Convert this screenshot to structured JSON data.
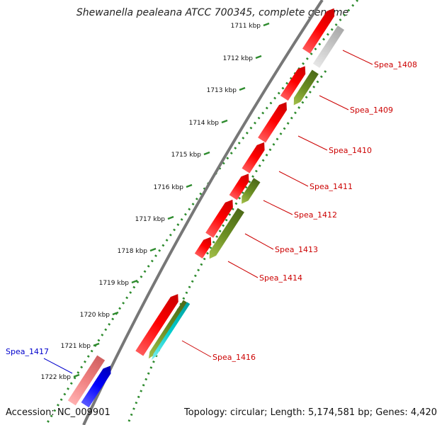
{
  "title": "Shewanella pealeana ATCC 700345, complete genome",
  "footer": {
    "accession": "Accession: NC_009901",
    "topology": "Topology: circular; Length: 5,174,581 bp; Genes: 4,420"
  },
  "ticks": [
    {
      "label": "1711 kbp"
    },
    {
      "label": "1712 kbp"
    },
    {
      "label": "1713 kbp"
    },
    {
      "label": "1714 kbp"
    },
    {
      "label": "1715 kbp"
    },
    {
      "label": "1716 kbp"
    },
    {
      "label": "1717 kbp"
    },
    {
      "label": "1718 kbp"
    },
    {
      "label": "1719 kbp"
    },
    {
      "label": "1720 kbp"
    },
    {
      "label": "1721 kbp"
    },
    {
      "label": "1722 kbp"
    }
  ],
  "gene_labels": [
    {
      "label": "Spea_1408",
      "color": "#cc0000"
    },
    {
      "label": "Spea_1409",
      "color": "#cc0000"
    },
    {
      "label": "Spea_1410",
      "color": "#cc0000"
    },
    {
      "label": "Spea_1411",
      "color": "#cc0000"
    },
    {
      "label": "Spea_1412",
      "color": "#cc0000"
    },
    {
      "label": "Spea_1413",
      "color": "#cc0000"
    },
    {
      "label": "Spea_1414",
      "color": "#cc0000"
    },
    {
      "label": "Spea_1416",
      "color": "#cc0000"
    },
    {
      "label": "Spea_1417",
      "color": "#0000cc"
    }
  ],
  "colors": {
    "cds_forward": "#ff0000",
    "cds_reverse": "#6b8e23",
    "rna": "#00cccc",
    "pseudo": "#c8c8c8",
    "highlight_pink": "#f08080",
    "highlight_blue": "#0000ff",
    "backbone": "#777777",
    "ticks": "#2e8b2e"
  }
}
